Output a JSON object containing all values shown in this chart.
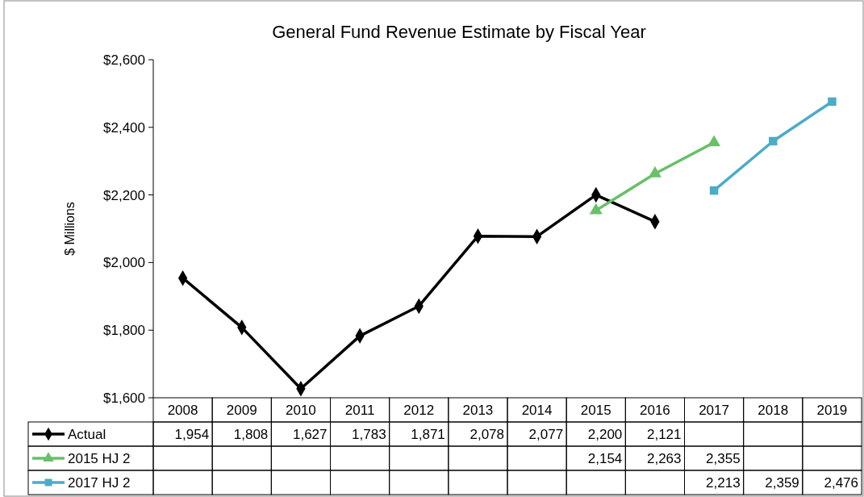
{
  "chart_data": {
    "type": "line",
    "title": "General Fund Revenue Estimate by Fiscal Year",
    "ylabel": "$ Millions",
    "categories": [
      "2008",
      "2009",
      "2010",
      "2011",
      "2012",
      "2013",
      "2014",
      "2015",
      "2016",
      "2017",
      "2018",
      "2019"
    ],
    "series": [
      {
        "name": "Actual",
        "color": "#000000",
        "marker": "diamond",
        "values": [
          1954,
          1808,
          1627,
          1783,
          1871,
          2078,
          2077,
          2200,
          2121,
          null,
          null,
          null
        ],
        "value_labels": [
          "1,954",
          "1,808",
          "1,627",
          "1,783",
          "1,871",
          "2,078",
          "2,077",
          "2,200",
          "2,121",
          null,
          null,
          null
        ]
      },
      {
        "name": "2015 HJ 2",
        "color": "#6abf69",
        "marker": "triangle",
        "values": [
          null,
          null,
          null,
          null,
          null,
          null,
          null,
          2154,
          2263,
          2355,
          null,
          null
        ],
        "value_labels": [
          null,
          null,
          null,
          null,
          null,
          null,
          null,
          "2,154",
          "2,263",
          "2,355",
          null,
          null
        ]
      },
      {
        "name": "2017 HJ 2",
        "color": "#4bacc6",
        "marker": "square",
        "values": [
          null,
          null,
          null,
          null,
          null,
          null,
          null,
          null,
          null,
          2213,
          2359,
          2476
        ],
        "value_labels": [
          null,
          null,
          null,
          null,
          null,
          null,
          null,
          null,
          null,
          "2,213",
          "2,359",
          "2,476"
        ]
      }
    ],
    "ylim": [
      1600,
      2600
    ],
    "yticks": [
      {
        "value": 1600,
        "label": "$1,600"
      },
      {
        "value": 1800,
        "label": "$1,800"
      },
      {
        "value": 2000,
        "label": "$2,000"
      },
      {
        "value": 2200,
        "label": "$2,200"
      },
      {
        "value": 2400,
        "label": "$2,400"
      },
      {
        "value": 2600,
        "label": "$2,600"
      }
    ],
    "grid": false,
    "legend": "bottom",
    "line_style": "solid"
  }
}
